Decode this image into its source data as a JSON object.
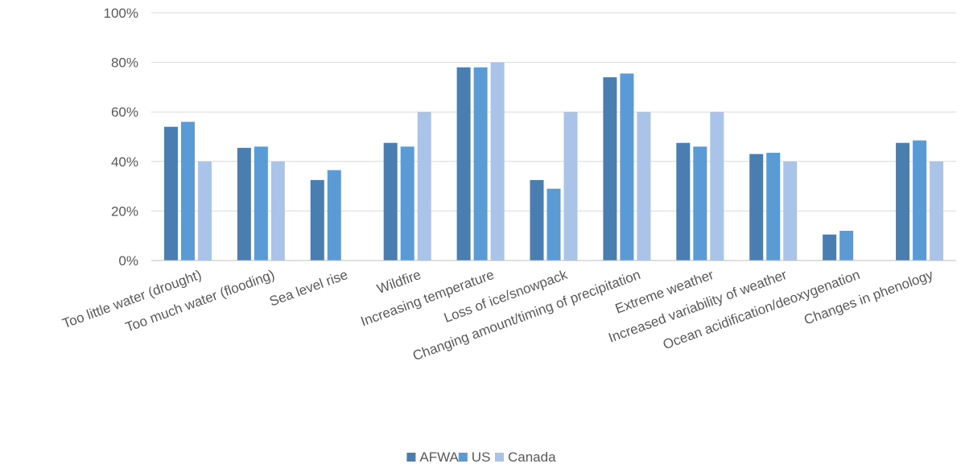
{
  "chart_data": {
    "type": "bar",
    "categories": [
      "Too little water (drought)",
      "Too much water (flooding)",
      "Sea level rise",
      "Wildfire",
      "Increasing temperature",
      "Loss of ice/snowpack",
      "Changing amount/timing of precipitation",
      "Extreme weather",
      "Increased variability of weather",
      "Ocean acidification/deoxygenation",
      "Changes in phenology"
    ],
    "series": [
      {
        "name": "AFWA",
        "color": "#4a7eb0",
        "values": [
          54,
          45.5,
          32.5,
          47.5,
          78,
          32.5,
          74,
          47.5,
          43,
          10.5,
          47.5
        ]
      },
      {
        "name": "US",
        "color": "#5b9bd5",
        "values": [
          56,
          46,
          36.5,
          46,
          78,
          29,
          75.5,
          46,
          43.5,
          12,
          48.5
        ]
      },
      {
        "name": "Canada",
        "color": "#a9c4e8",
        "values": [
          40,
          40,
          0,
          60,
          80,
          60,
          60,
          60,
          40,
          0,
          40
        ]
      }
    ],
    "yticks": [
      "0%",
      "20%",
      "40%",
      "60%",
      "80%",
      "100%"
    ],
    "ylim": [
      0,
      100
    ],
    "grid": true,
    "legend": "bottom-center"
  }
}
